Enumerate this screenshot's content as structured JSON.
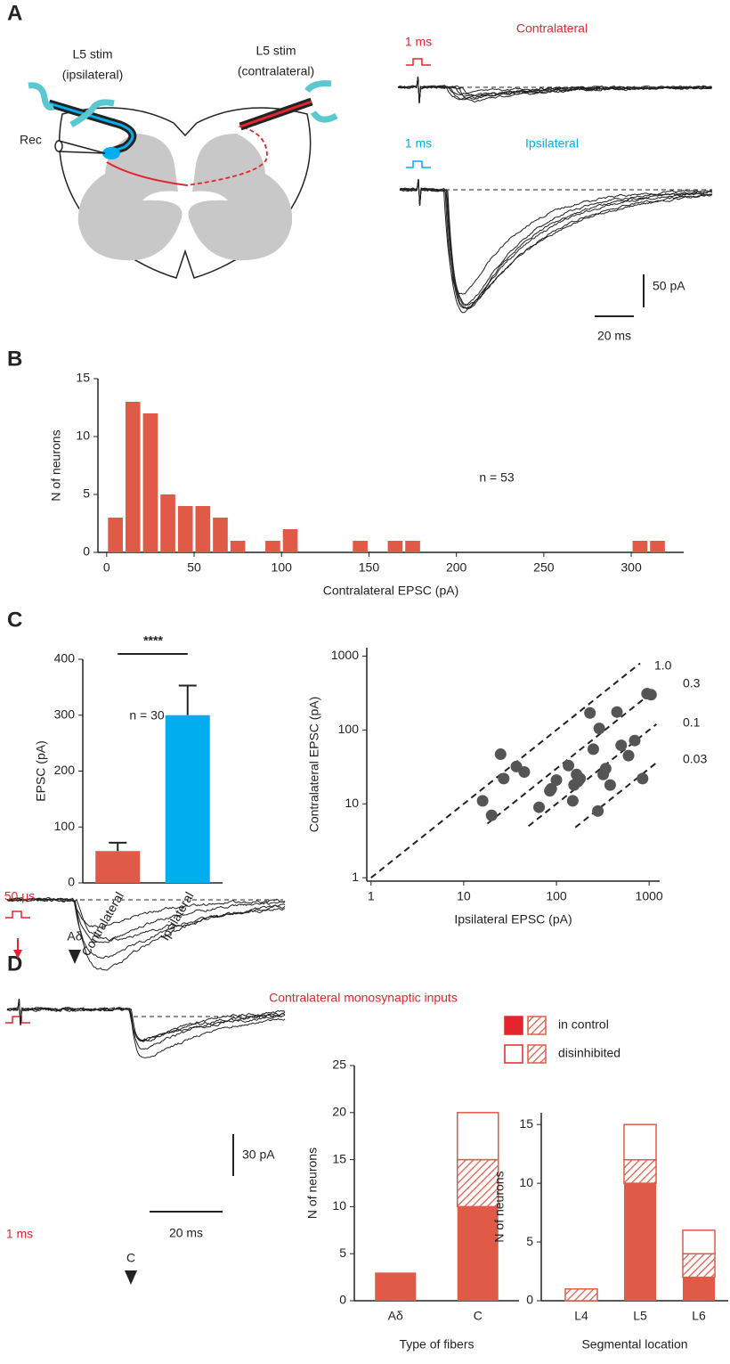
{
  "panel_labels": {
    "a": "A",
    "b": "B",
    "c": "C",
    "d": "D"
  },
  "diagram": {
    "stim_ipsi": [
      "L5 stim",
      "(ipsilateral)"
    ],
    "stim_contra": [
      "L5 stim",
      "(contralateral)"
    ],
    "rec": "Rec"
  },
  "traces_a": {
    "contra_title": "Contralateral",
    "ipsi_title": "Ipsilateral",
    "stim_contra": "1 ms",
    "stim_ipsi": "1 ms",
    "scale_y": "50 pA",
    "scale_x": "20 ms"
  },
  "traces_d": {
    "title": "Contralateral monosynaptic inputs",
    "stim_top": "50 μs",
    "marker_top": "Aδ",
    "stim_bottom": "1 ms",
    "marker_bottom": "C",
    "scale_y": "30 pA",
    "scale_x": "20 ms"
  },
  "chart_data": [
    {
      "type": "histogram",
      "bins": [
        0,
        10,
        20,
        30,
        40,
        50,
        60,
        70,
        80,
        90,
        100,
        110,
        120,
        130,
        140,
        150,
        160,
        170,
        180,
        190,
        200,
        210,
        220,
        230,
        240,
        250,
        260,
        270,
        280,
        290,
        300,
        310,
        320
      ],
      "values": [
        3,
        13,
        12,
        5,
        4,
        4,
        3,
        1,
        0,
        1,
        2,
        0,
        0,
        0,
        1,
        0,
        1,
        1,
        0,
        0,
        0,
        0,
        0,
        0,
        0,
        0,
        0,
        0,
        0,
        0,
        1,
        1
      ],
      "color": "#e05a48",
      "xlim": [
        -5,
        330
      ],
      "ylim": [
        0,
        15
      ],
      "xticks": [
        0,
        50,
        100,
        150,
        200,
        250,
        300
      ],
      "yticks": [
        0,
        5,
        10,
        15
      ],
      "xlabel": "Contralateral EPSC (pA)",
      "ylabel": "N of neurons",
      "annotation": "n = 53"
    },
    {
      "type": "bar",
      "categories": [
        "Contralateral",
        "Ipsilateral"
      ],
      "values": [
        57,
        300
      ],
      "errors": [
        15,
        53
      ],
      "colors": [
        "#e05a48",
        "#00aeef"
      ],
      "ylim": [
        0,
        400
      ],
      "yticks": [
        0,
        100,
        200,
        300,
        400
      ],
      "ylabel": "EPSC (pA)",
      "annotation": "n = 30",
      "significance": "****"
    },
    {
      "type": "scatter",
      "x": [
        16,
        20,
        25,
        27,
        37,
        45,
        65,
        85,
        88,
        100,
        135,
        150,
        155,
        165,
        170,
        180,
        230,
        250,
        280,
        290,
        320,
        340,
        380,
        450,
        500,
        600,
        700,
        850,
        950,
        1050
      ],
      "y": [
        11,
        7,
        47,
        22,
        32,
        27,
        9,
        15,
        16,
        21,
        33,
        11,
        18,
        25,
        20,
        22,
        170,
        55,
        8,
        105,
        25,
        30,
        18,
        175,
        62,
        45,
        72,
        22,
        310,
        300
      ],
      "color": "#555555",
      "log_scale": true,
      "xlim": [
        0.9,
        1300
      ],
      "ylim": [
        0.9,
        1300
      ],
      "xticks": [
        1,
        10,
        100,
        1000
      ],
      "yticks": [
        1,
        10,
        100,
        1000
      ],
      "xlabel": "Ipsilateral EPSC (pA)",
      "ylabel": "Contralateral EPSC (pA)",
      "ratio_lines": [
        {
          "value": 1,
          "label": "1.0"
        },
        {
          "value": 0.3,
          "label": "0.3"
        },
        {
          "value": 0.1,
          "label": "0.1"
        },
        {
          "value": 0.03,
          "label": "0.03"
        }
      ]
    },
    {
      "type": "stacked_bar",
      "categories": [
        "Aδ",
        "C"
      ],
      "series": [
        {
          "fill": "solid",
          "values": [
            3,
            10
          ]
        },
        {
          "fill": "hatched",
          "values": [
            0,
            5
          ]
        },
        {
          "fill": "open",
          "values": [
            0,
            5
          ]
        }
      ],
      "color": "#e05a48",
      "ylim": [
        0,
        25
      ],
      "yticks": [
        0,
        5,
        10,
        15,
        20,
        25
      ],
      "xlabel": "Type of fibers",
      "ylabel": "N of neurons",
      "legend": [
        "in control",
        "disinhibited"
      ]
    },
    {
      "type": "stacked_bar",
      "categories": [
        "L4",
        "L5",
        "L6"
      ],
      "series": [
        {
          "fill": "solid",
          "values": [
            0,
            10,
            2
          ]
        },
        {
          "fill": "hatched",
          "values": [
            1,
            2,
            2
          ]
        },
        {
          "fill": "open",
          "values": [
            0,
            3,
            2
          ]
        }
      ],
      "color": "#e05a48",
      "ylim": [
        0,
        16
      ],
      "yticks": [
        0,
        5,
        10,
        15
      ],
      "xlabel": "Segmental location",
      "ylabel": "N of neurons"
    }
  ]
}
